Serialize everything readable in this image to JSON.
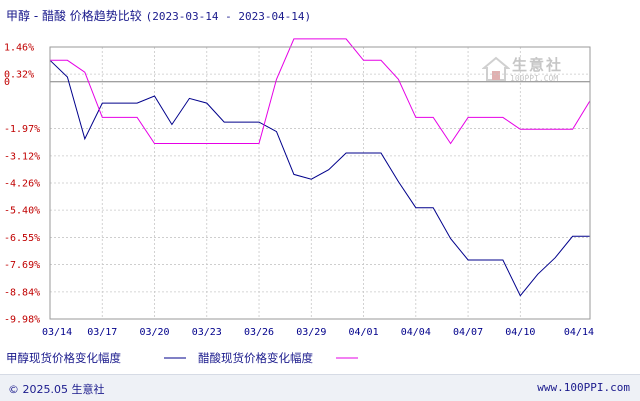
{
  "title": {
    "product": "甲醇 - 醋酸 价格趋势比较",
    "range": "(2023-03-14 - 2023-04-14)"
  },
  "watermark": {
    "text": "生意社",
    "url": "100PPI.COM"
  },
  "footer": {
    "copyright": "© 2025.05 生意社",
    "site": "www.100PPI.com"
  },
  "colors": {
    "series1": "#00008b",
    "series2": "#e600e6",
    "ytick": "#c00000",
    "xtick": "#00008b",
    "zero_line": "#808080",
    "grid": "#c8c8c8"
  },
  "chart_data": {
    "type": "line",
    "y_ticks": [
      "1.46%",
      "0.32%",
      "0",
      "-1.97%",
      "-3.12%",
      "-4.26%",
      "-5.40%",
      "-6.55%",
      "-7.69%",
      "-8.84%",
      "-9.98%"
    ],
    "y_tick_values": [
      1.46,
      0.32,
      0,
      -1.97,
      -3.12,
      -4.26,
      -5.4,
      -6.55,
      -7.69,
      -8.84,
      -9.98
    ],
    "ylim": [
      -9.98,
      1.46
    ],
    "x_ticks": [
      "03/14",
      "03/17",
      "03/20",
      "03/23",
      "03/26",
      "03/29",
      "04/01",
      "04/04",
      "04/07",
      "04/10",
      "04/14"
    ],
    "x_tick_days": [
      0,
      3,
      6,
      9,
      12,
      15,
      18,
      21,
      24,
      27,
      31
    ],
    "series": [
      {
        "name": "甲醇现货价格变化幅度",
        "points": [
          [
            0,
            0.9
          ],
          [
            1,
            0.2
          ],
          [
            2,
            -2.4
          ],
          [
            3,
            -0.9
          ],
          [
            4,
            -0.9
          ],
          [
            5,
            -0.9
          ],
          [
            6,
            -0.6
          ],
          [
            7,
            -1.8
          ],
          [
            8,
            -0.7
          ],
          [
            9,
            -0.9
          ],
          [
            10,
            -1.7
          ],
          [
            11,
            -1.7
          ],
          [
            12,
            -1.7
          ],
          [
            13,
            -2.1
          ],
          [
            14,
            -3.9
          ],
          [
            15,
            -4.1
          ],
          [
            16,
            -3.7
          ],
          [
            17,
            -3.0
          ],
          [
            18,
            -3.0
          ],
          [
            19,
            -3.0
          ],
          [
            20,
            -4.2
          ],
          [
            21,
            -5.3
          ],
          [
            22,
            -5.3
          ],
          [
            23,
            -6.6
          ],
          [
            24,
            -7.5
          ],
          [
            25,
            -7.5
          ],
          [
            26,
            -7.5
          ],
          [
            27,
            -9.0
          ],
          [
            28,
            -8.1
          ],
          [
            29,
            -7.4
          ],
          [
            30,
            -6.5
          ],
          [
            31,
            -6.5
          ]
        ]
      },
      {
        "name": "醋酸现货价格变化幅度",
        "points": [
          [
            0,
            0.9
          ],
          [
            1,
            0.9
          ],
          [
            2,
            0.4
          ],
          [
            3,
            -1.5
          ],
          [
            4,
            -1.5
          ],
          [
            5,
            -1.5
          ],
          [
            6,
            -2.6
          ],
          [
            7,
            -2.6
          ],
          [
            8,
            -2.6
          ],
          [
            9,
            -2.6
          ],
          [
            10,
            -2.6
          ],
          [
            11,
            -2.6
          ],
          [
            12,
            -2.6
          ],
          [
            13,
            0.1
          ],
          [
            14,
            1.8
          ],
          [
            15,
            1.8
          ],
          [
            16,
            1.8
          ],
          [
            17,
            1.8
          ],
          [
            18,
            0.9
          ],
          [
            19,
            0.9
          ],
          [
            20,
            0.1
          ],
          [
            21,
            -1.5
          ],
          [
            22,
            -1.5
          ],
          [
            23,
            -2.6
          ],
          [
            24,
            -1.5
          ],
          [
            25,
            -1.5
          ],
          [
            26,
            -1.5
          ],
          [
            27,
            -2.0
          ],
          [
            28,
            -2.0
          ],
          [
            29,
            -2.0
          ],
          [
            30,
            -2.0
          ],
          [
            31,
            -0.8
          ]
        ]
      }
    ],
    "legend_placement": "bottom"
  }
}
